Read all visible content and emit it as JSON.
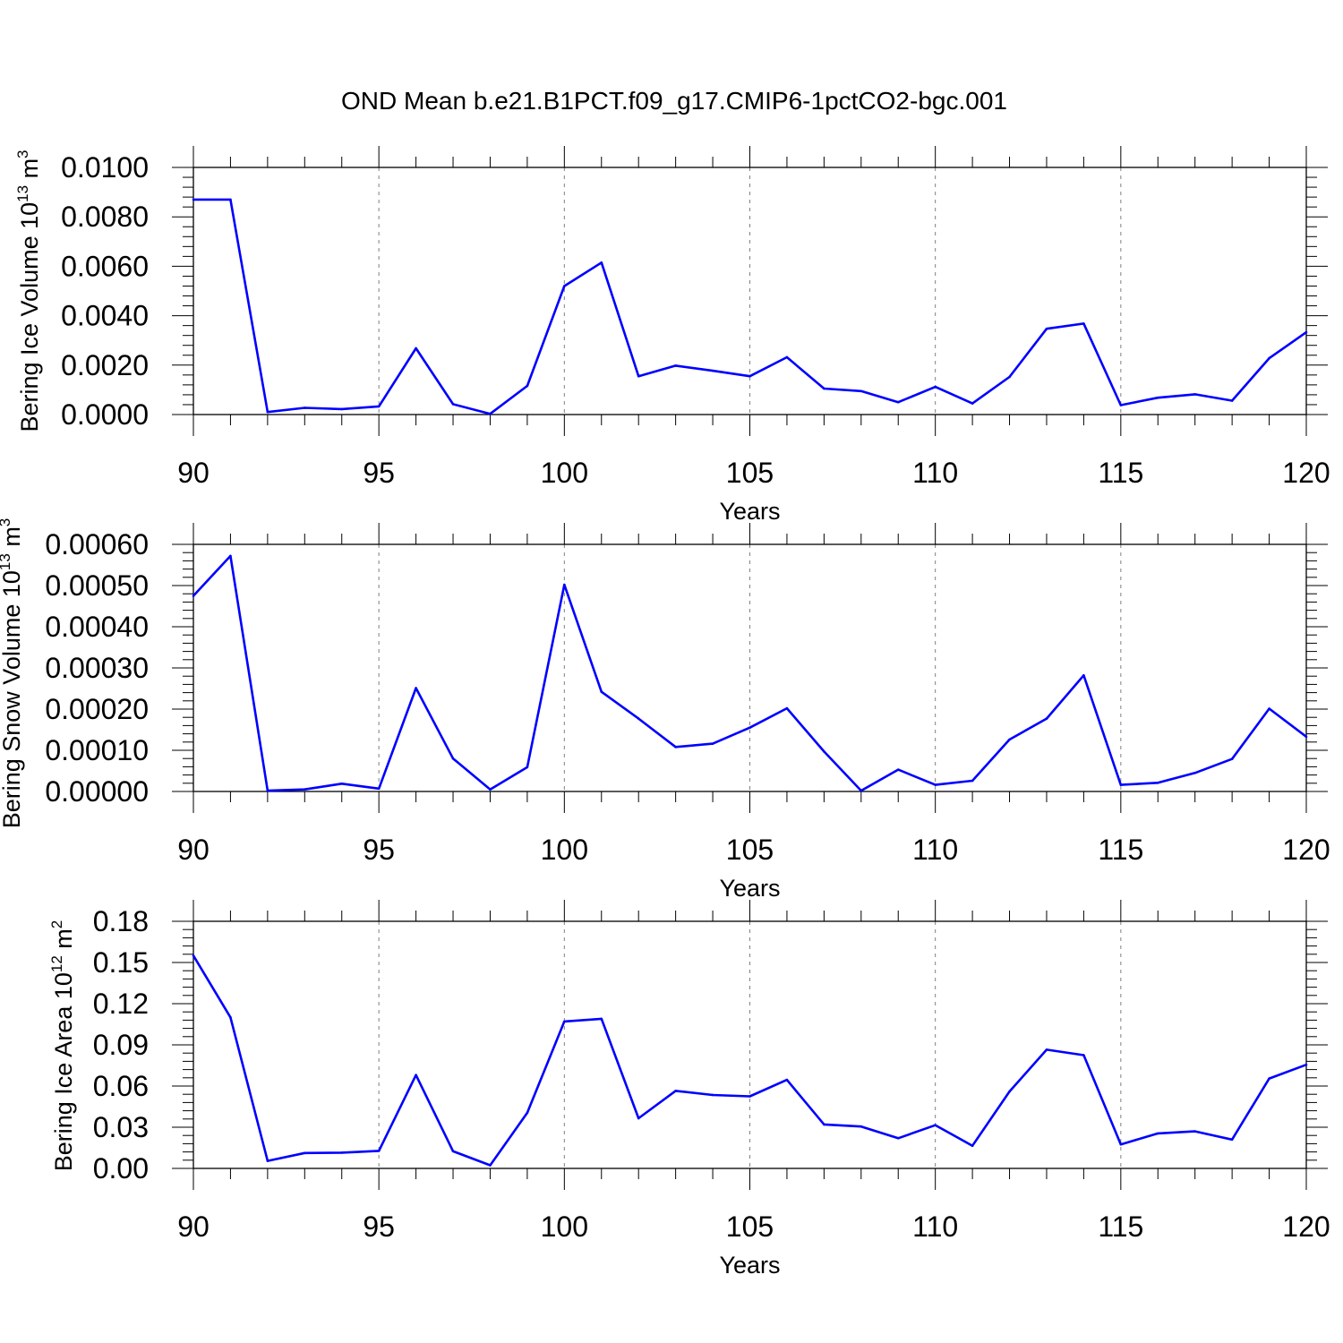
{
  "title": "OND Mean b.e21.B1PCT.f09_g17.CMIP6-1pctCO2-bgc.001",
  "colors": {
    "series": "#0000ff",
    "axis": "#000000",
    "grid": "#808080",
    "background": "#ffffff"
  },
  "chart_data": [
    {
      "type": "line",
      "ylabel_main": "Bering Ice Volume 10",
      "ylabel_exp": "13",
      "ylabel_unit": " m",
      "ylabel_unit_exp": "3",
      "xlabel": "Years",
      "xlim": [
        90,
        120
      ],
      "ylim": [
        0,
        0.01
      ],
      "x_ticks": [
        "90",
        "95",
        "100",
        "105",
        "110",
        "115",
        "120"
      ],
      "y_ticks": [
        "0.0000",
        "0.0020",
        "0.0040",
        "0.0060",
        "0.0080",
        "0.0100"
      ],
      "grid": "vertical dashed at major x ticks",
      "x": [
        90,
        91,
        92,
        93,
        94,
        95,
        96,
        97,
        98,
        99,
        100,
        101,
        102,
        103,
        104,
        105,
        106,
        107,
        108,
        109,
        110,
        111,
        112,
        113,
        114,
        115,
        116,
        117,
        118,
        119,
        120
      ],
      "y": [
        0.0087,
        0.0087,
        0.0001,
        0.00027,
        0.00022,
        0.00033,
        0.00268,
        0.00042,
        3e-05,
        0.00116,
        0.0052,
        0.00615,
        0.00155,
        0.00198,
        0.00177,
        0.00155,
        0.00232,
        0.00105,
        0.00095,
        0.0005,
        0.00112,
        0.00045,
        0.00152,
        0.00347,
        0.00368,
        0.00038,
        0.00068,
        0.00082,
        0.00056,
        0.00228,
        0.00333
      ]
    },
    {
      "type": "line",
      "ylabel_main": "Bering Snow Volume 10",
      "ylabel_exp": "13",
      "ylabel_unit": " m",
      "ylabel_unit_exp": "3",
      "xlabel": "Years",
      "xlim": [
        90,
        120
      ],
      "ylim": [
        0,
        0.0006
      ],
      "x_ticks": [
        "90",
        "95",
        "100",
        "105",
        "110",
        "115",
        "120"
      ],
      "y_ticks": [
        "0.00000",
        "0.00010",
        "0.00020",
        "0.00030",
        "0.00040",
        "0.00050",
        "0.00060"
      ],
      "grid": "vertical dashed at major x ticks",
      "x": [
        90,
        91,
        92,
        93,
        94,
        95,
        96,
        97,
        98,
        99,
        100,
        101,
        102,
        103,
        104,
        105,
        106,
        107,
        108,
        109,
        110,
        111,
        112,
        113,
        114,
        115,
        116,
        117,
        118,
        119,
        120
      ],
      "y": [
        0.000475,
        0.000572,
        2e-06,
        5e-06,
        1.9e-05,
        7e-06,
        0.000251,
        8e-05,
        5e-06,
        5.9e-05,
        0.000502,
        0.000242,
        0.000177,
        0.000108,
        0.000116,
        0.000155,
        0.000202,
        9.7e-05,
        2e-06,
        5.3e-05,
        1.6e-05,
        2.6e-05,
        0.000126,
        0.000177,
        0.000282,
        1.6e-05,
        2.1e-05,
        4.5e-05,
        7.9e-05,
        0.000201,
        0.000133
      ]
    },
    {
      "type": "line",
      "ylabel_main": "Bering Ice Area 10",
      "ylabel_exp": "12",
      "ylabel_unit": " m",
      "ylabel_unit_exp": "2",
      "xlabel": "Years",
      "xlim": [
        90,
        120
      ],
      "ylim": [
        0,
        0.18
      ],
      "x_ticks": [
        "90",
        "95",
        "100",
        "105",
        "110",
        "115",
        "120"
      ],
      "y_ticks": [
        "0.00",
        "0.03",
        "0.06",
        "0.09",
        "0.12",
        "0.15",
        "0.18"
      ],
      "grid": "vertical dashed at major x ticks",
      "x": [
        90,
        91,
        92,
        93,
        94,
        95,
        96,
        97,
        98,
        99,
        100,
        101,
        102,
        103,
        104,
        105,
        106,
        107,
        108,
        109,
        110,
        111,
        112,
        113,
        114,
        115,
        116,
        117,
        118,
        119,
        120
      ],
      "y": [
        0.155,
        0.11,
        0.0055,
        0.0112,
        0.0115,
        0.0128,
        0.068,
        0.0125,
        0.0023,
        0.0405,
        0.107,
        0.109,
        0.0365,
        0.0565,
        0.0535,
        0.0525,
        0.0645,
        0.032,
        0.0305,
        0.022,
        0.0315,
        0.0165,
        0.056,
        0.0865,
        0.0825,
        0.0175,
        0.0255,
        0.027,
        0.021,
        0.0655,
        0.0755
      ]
    }
  ]
}
